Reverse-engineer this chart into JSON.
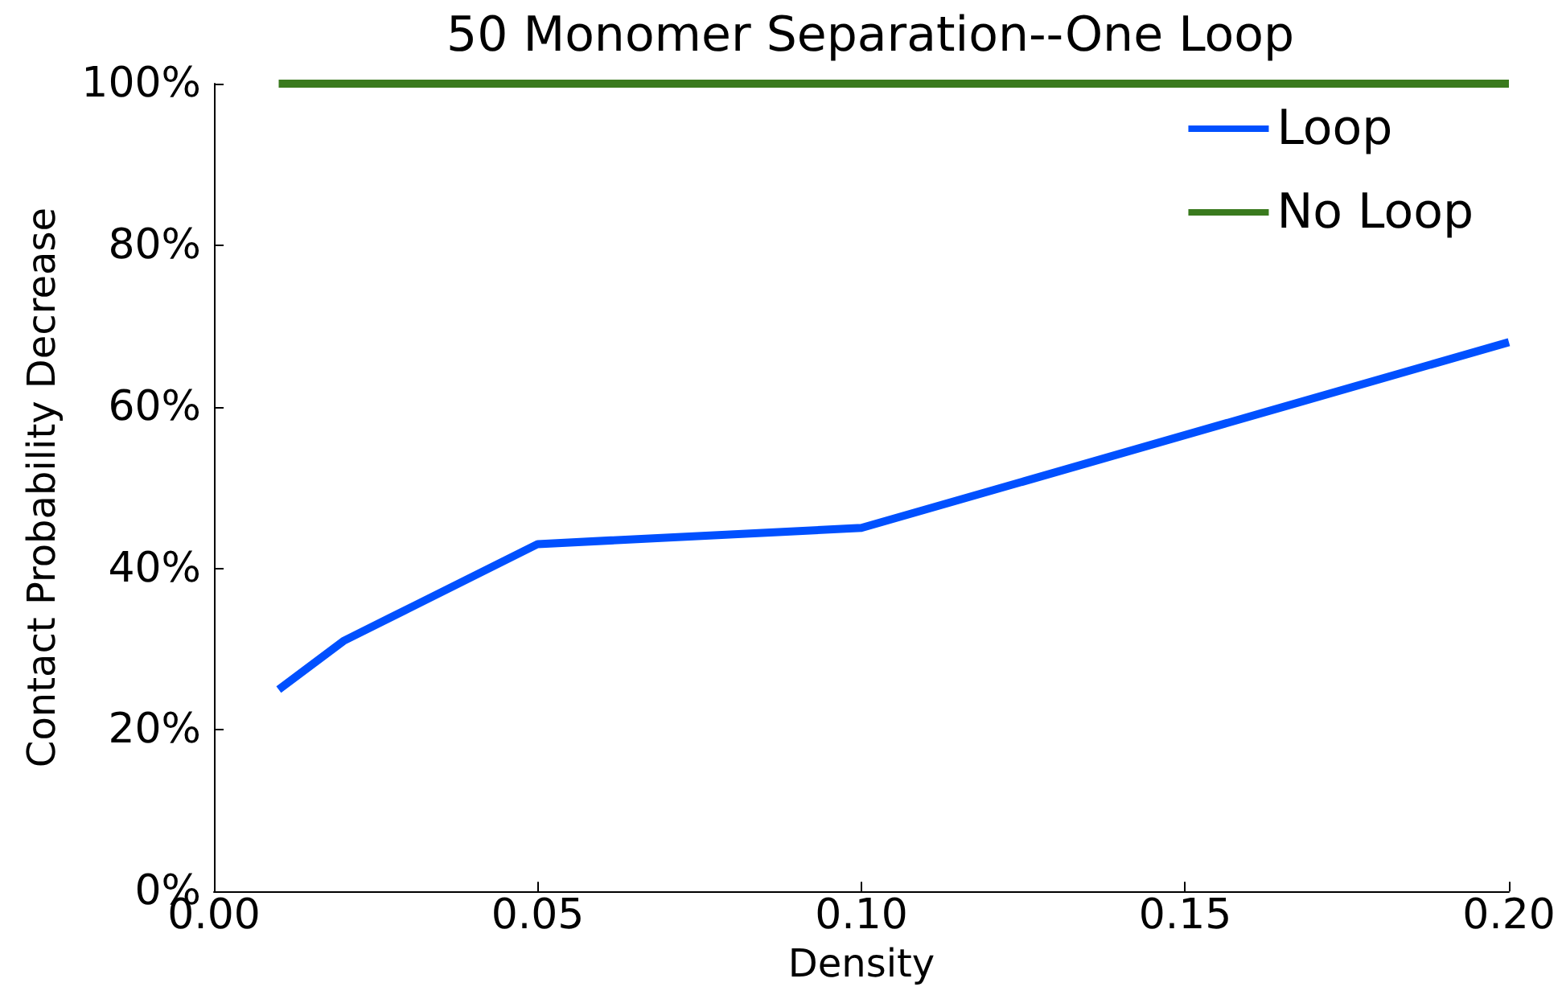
{
  "chart_data": {
    "type": "line",
    "title": "50 Monomer Separation--One Loop",
    "xlabel": "Density",
    "ylabel": "Contact Probability Decrease",
    "x": [
      0.01,
      0.02,
      0.05,
      0.1,
      0.2
    ],
    "series": [
      {
        "name": "Loop",
        "color": "#0050ff",
        "values": [
          25,
          31,
          43,
          45,
          68
        ]
      },
      {
        "name": "No Loop",
        "color": "#3a7a1e",
        "values": [
          100,
          100,
          100,
          100,
          100
        ]
      }
    ],
    "xlim": [
      0,
      0.2
    ],
    "xticks": [
      {
        "value": 0,
        "label": "0.00"
      },
      0.05,
      {
        "value": 0.1,
        "label": "0.10"
      },
      0.15,
      {
        "value": 0.2,
        "label": "0.20"
      }
    ],
    "ylim": [
      0,
      100
    ],
    "yticks": [
      {
        "value": 0,
        "label": "0%"
      },
      {
        "value": 20,
        "label": "20%"
      },
      {
        "value": 40,
        "label": "40%"
      },
      {
        "value": 60,
        "label": "60%"
      },
      {
        "value": 80,
        "label": "80%"
      },
      {
        "value": 100,
        "label": "100%"
      }
    ],
    "grid": false,
    "legend": "top right",
    "marker": "none",
    "line_style": "solid"
  }
}
